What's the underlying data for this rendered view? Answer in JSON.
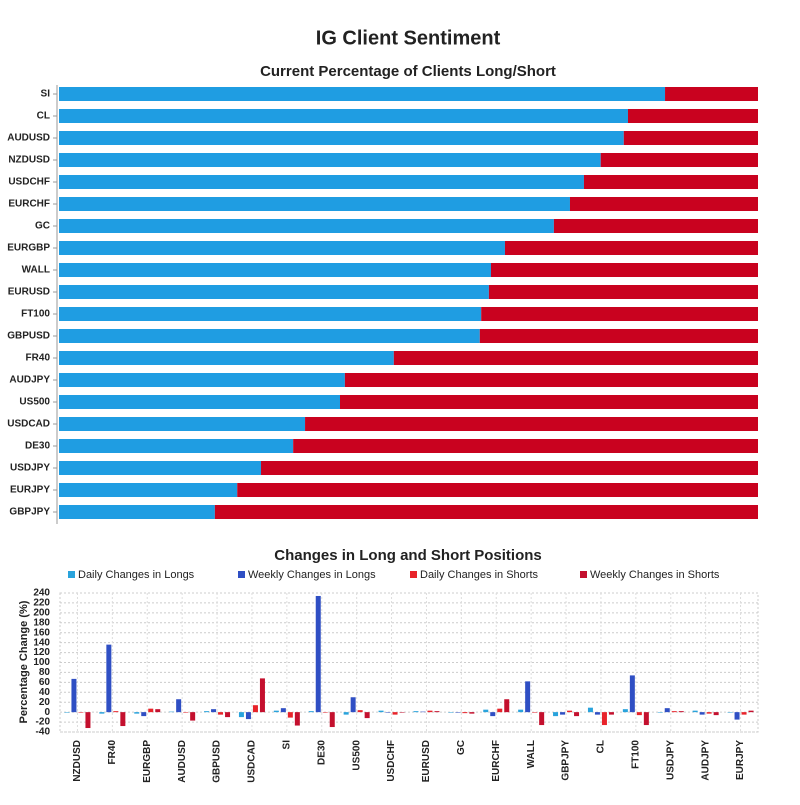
{
  "title": "IG Client Sentiment",
  "chart_data": [
    {
      "type": "hbar",
      "title": "Current Percentage of Clients Long/Short",
      "categories": [
        "SI",
        "CL",
        "AUDUSD",
        "NZDUSD",
        "USDCHF",
        "EURCHF",
        "GC",
        "EURGBP",
        "WALL",
        "EURUSD",
        "FT100",
        "GBPUSD",
        "FR40",
        "AUDJPY",
        "US500",
        "USDCAD",
        "DE30",
        "USDJPY",
        "EURJPY",
        "GBPJPY"
      ],
      "series": [
        {
          "color": "#1f9de2",
          "values": [
            86.7,
            81.4,
            80.8,
            77.5,
            75.1,
            73.1,
            70.8,
            63.8,
            61.8,
            61.5,
            60.4,
            60.2,
            47.9,
            40.9,
            40.2,
            35.2,
            33.5,
            28.9,
            25.5,
            22.3
          ]
        },
        {
          "color": "#c9021f",
          "values": [
            13.3,
            18.6,
            19.2,
            22.5,
            24.9,
            26.9,
            29.2,
            36.2,
            38.2,
            38.5,
            39.6,
            39.8,
            52.1,
            59.1,
            59.8,
            64.8,
            66.5,
            71.1,
            74.5,
            77.7
          ]
        }
      ],
      "xlim": [
        0,
        100
      ]
    },
    {
      "type": "bar",
      "title": "Changes in Long and Short Positions",
      "y_label": "Percentage Change (%)",
      "categories": [
        "NZDUSD",
        "FR40",
        "EURGBP",
        "AUDUSD",
        "GBPUSD",
        "USDCAD",
        "SI",
        "DE30",
        "US500",
        "USDCHF",
        "EURUSD",
        "GC",
        "EURCHF",
        "WALL",
        "GBPJPY",
        "CL",
        "FT100",
        "USDJPY",
        "AUDJPY",
        "EURJPY"
      ],
      "series": [
        {
          "name": "Daily Changes in Longs",
          "color": "#29a3dc",
          "values": [
            0,
            -3,
            -3,
            1,
            2,
            -10,
            3,
            2,
            -5,
            3,
            2,
            0,
            5,
            5,
            -8,
            9,
            6,
            0,
            3,
            0
          ]
        },
        {
          "name": "Weekly Changes in Longs",
          "color": "#2f4fc4",
          "values": [
            67,
            136,
            -8,
            26,
            6,
            -14,
            8,
            234,
            30,
            0,
            1,
            0,
            -8,
            62,
            -5,
            -5,
            74,
            8,
            -5,
            -15
          ]
        },
        {
          "name": "Daily Changes in Shorts",
          "color": "#e8232a",
          "values": [
            0,
            2,
            7,
            -1,
            -5,
            14,
            -11,
            0,
            4,
            -5,
            3,
            -2,
            7,
            0,
            3,
            -26,
            -6,
            2,
            -3,
            -5
          ]
        },
        {
          "name": "Weekly Changes in Shorts",
          "color": "#c4102e",
          "values": [
            -32,
            -28,
            6,
            -17,
            -10,
            68,
            -27,
            -30,
            -12,
            0,
            2,
            -3,
            26,
            -26,
            -8,
            -5,
            -26,
            2,
            -6,
            3
          ]
        }
      ],
      "ylim": [
        -40,
        240
      ],
      "yticks": [
        -40,
        -20,
        0,
        20,
        40,
        60,
        80,
        100,
        120,
        140,
        160,
        180,
        200,
        220,
        240
      ],
      "grid": true
    }
  ]
}
